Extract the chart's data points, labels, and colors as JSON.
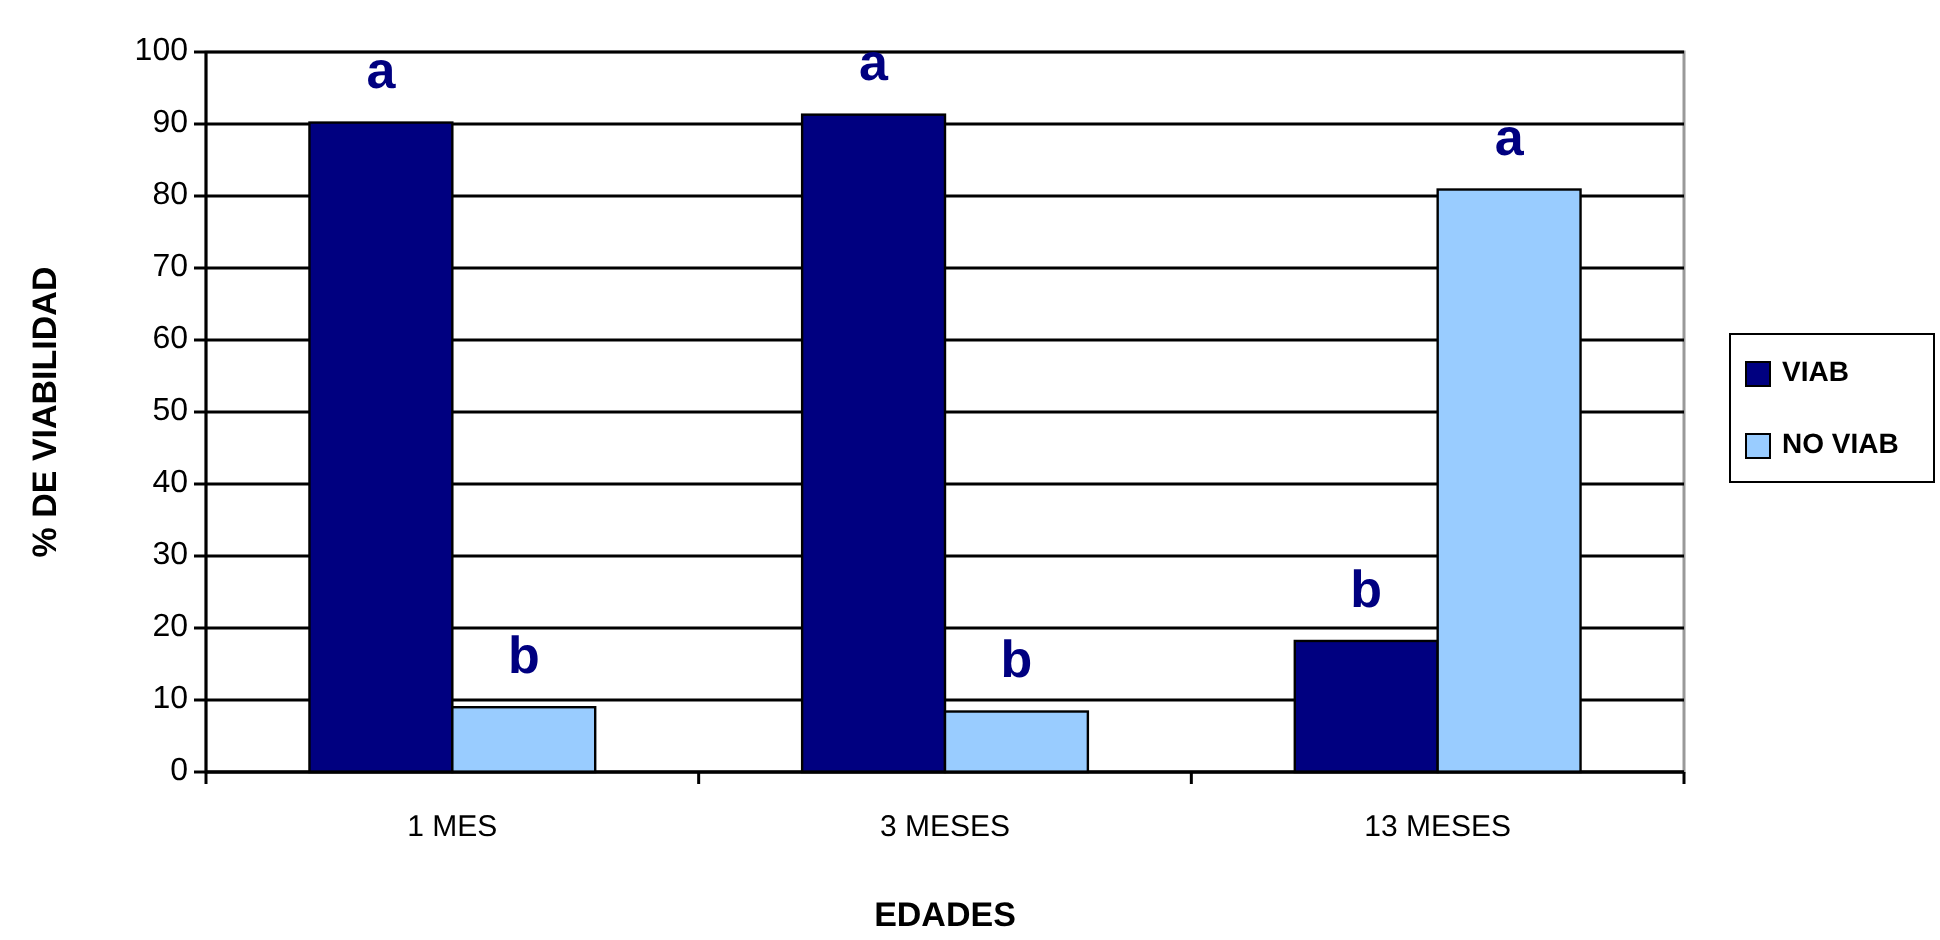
{
  "chart_data": {
    "type": "bar",
    "xlabel": "EDADES",
    "ylabel": "% DE VIABILIDAD",
    "categories": [
      "1 MES",
      "3 MESES",
      "13 MESES"
    ],
    "series": [
      {
        "name": "VIAB",
        "color": "#000080",
        "values": [
          90.2,
          91.3,
          18.2
        ]
      },
      {
        "name": "NO VIAB",
        "color": "#99ccff",
        "values": [
          9.0,
          8.4,
          80.9
        ]
      }
    ],
    "ylim": [
      0,
      100
    ],
    "yticks": [
      0,
      10,
      20,
      30,
      40,
      50,
      60,
      70,
      80,
      90,
      100
    ],
    "grid": "y",
    "legend": "right",
    "annotations": [
      {
        "text": "a",
        "x": "1 MES",
        "y": 90.2
      },
      {
        "text": "b",
        "x": "1 MES",
        "y": 9.0
      },
      {
        "text": "a",
        "x": "3 MESES",
        "y": 91.3
      },
      {
        "text": "b",
        "x": "3 MESES",
        "y": 8.4
      },
      {
        "text": "b",
        "x": "13 MESES",
        "y": 18.2
      },
      {
        "text": "a",
        "x": "13 MESES",
        "y": 80.9
      }
    ]
  }
}
